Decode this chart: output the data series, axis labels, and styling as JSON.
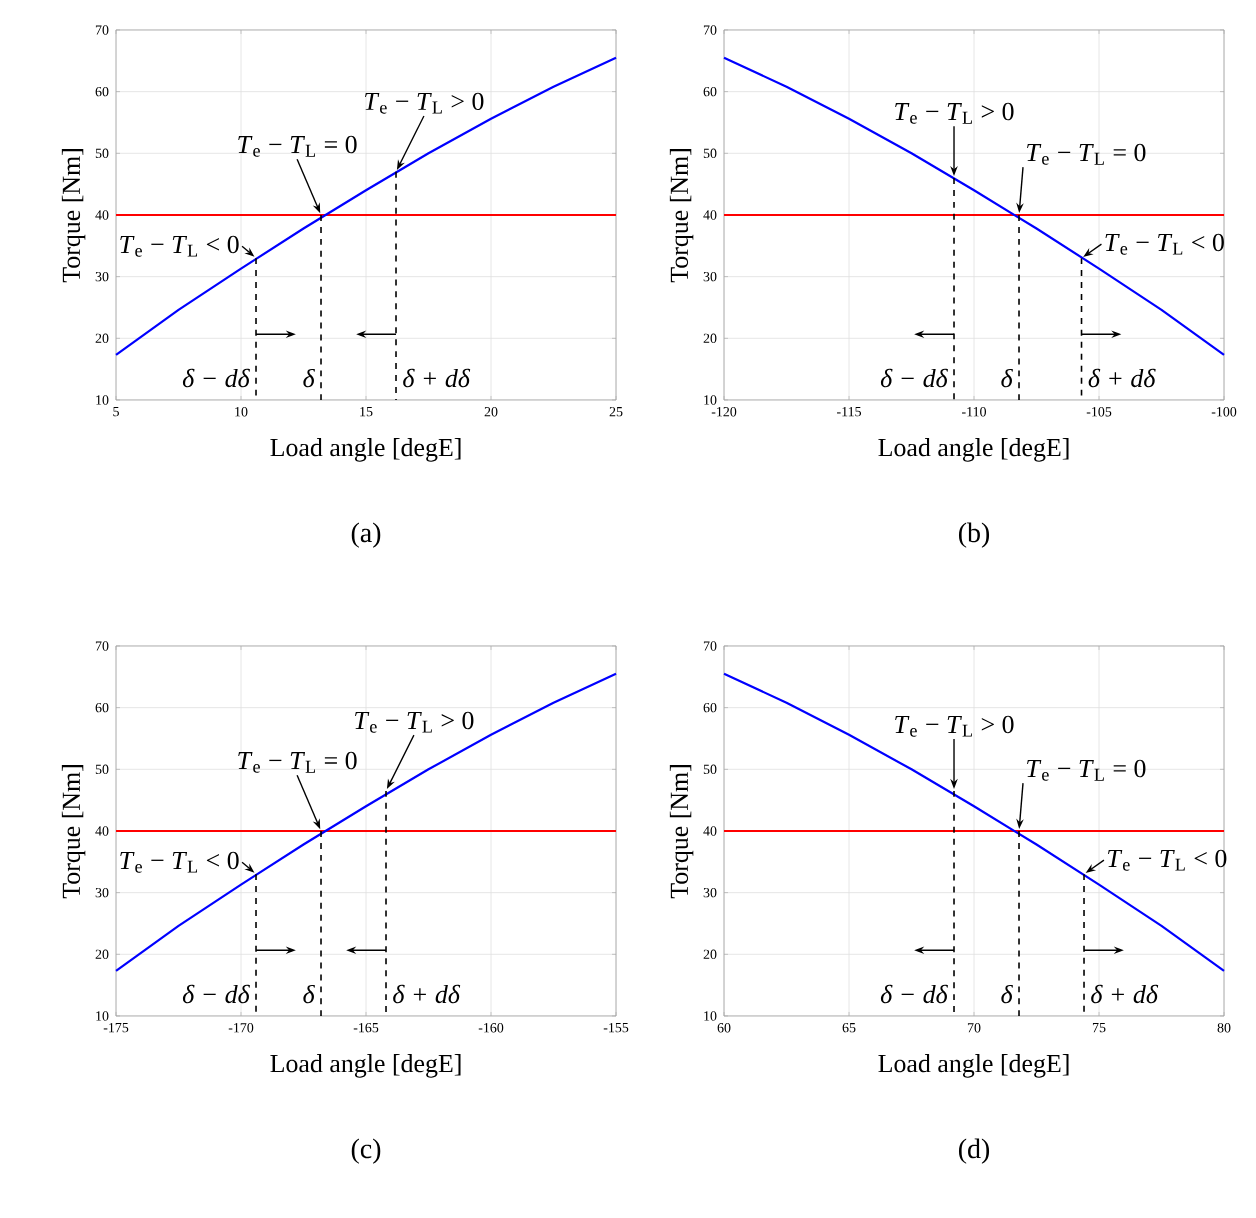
{
  "chart_data": [
    {
      "type": "line",
      "xlabel": "Load angle [degE]",
      "ylabel": "Torque [Nm]",
      "x": [
        5,
        7.5,
        10,
        12.5,
        15,
        17.5,
        20,
        22.5,
        25
      ],
      "series": [
        {
          "color": "#0000ff",
          "values": [
            17.3,
            24.6,
            31.3,
            37.8,
            44,
            50,
            55.6,
            60.8,
            65.5
          ]
        }
      ],
      "xlim": [
        5,
        25
      ],
      "ylim": [
        10,
        70
      ],
      "xticks": [
        5,
        10,
        15,
        20,
        25
      ],
      "yticks": [
        10,
        20,
        30,
        40,
        50,
        60,
        70
      ],
      "grid": true,
      "ref_lines": [
        {
          "axis": "y",
          "value": 40,
          "color": "#ff0000"
        }
      ],
      "annotations": [
        {
          "text": "*T*$_{e}$ − *T*$_{L}$ < 0",
          "x": 10.6,
          "y": 33
        },
        {
          "text": "*T*$_{e}$ − *T*$_{L}$ = 0",
          "x": 13.2,
          "y": 40
        },
        {
          "text": "*T*$_{e}$ − *T*$_{L}$ > 0",
          "x": 16.2,
          "y": 47
        },
        {
          "text": "δ − dδ",
          "x": 10.6,
          "y": 33
        },
        {
          "text": "δ",
          "x": 13.2,
          "y": 40
        },
        {
          "text": "δ + dδ",
          "x": 16.2,
          "y": 47
        },
        "(a)"
      ]
    },
    {
      "type": "line",
      "xlabel": "Load angle [degE]",
      "ylabel": "Torque [Nm]",
      "x": [
        -120,
        -117.5,
        -115,
        -112.5,
        -110,
        -107.5,
        -105,
        -102.5,
        -100
      ],
      "series": [
        {
          "color": "#0000ff",
          "values": [
            65.5,
            60.8,
            55.6,
            50,
            44,
            37.8,
            31.3,
            24.6,
            17.3
          ]
        }
      ],
      "xlim": [
        -120,
        -100
      ],
      "ylim": [
        10,
        70
      ],
      "xticks": [
        -120,
        -115,
        -110,
        -105,
        -100
      ],
      "yticks": [
        10,
        20,
        30,
        40,
        50,
        60,
        70
      ],
      "grid": true,
      "ref_lines": [
        {
          "axis": "y",
          "value": 40,
          "color": "#ff0000"
        }
      ],
      "annotations": [
        {
          "text": "*T*$_{e}$ − *T*$_{L}$ > 0",
          "x": -110.8,
          "y": 46
        },
        {
          "text": "*T*$_{e}$ − *T*$_{L}$ = 0",
          "x": -108.2,
          "y": 40
        },
        {
          "text": "*T*$_{e}$ − *T*$_{L}$ < 0",
          "x": -105.7,
          "y": 33
        },
        {
          "text": "δ − dδ",
          "x": -110.8,
          "y": 46
        },
        {
          "text": "δ",
          "x": -108.2,
          "y": 40
        },
        {
          "text": "δ + dδ",
          "x": -105.7,
          "y": 33
        },
        "(b)"
      ]
    },
    {
      "type": "line",
      "xlabel": "Load angle [degE]",
      "ylabel": "Torque [Nm]",
      "x": [
        -175,
        -172.5,
        -170,
        -167.5,
        -165,
        -162.5,
        -160,
        -157.5,
        -155
      ],
      "series": [
        {
          "color": "#0000ff",
          "values": [
            17.3,
            24.6,
            31.3,
            37.8,
            44,
            50,
            55.6,
            60.8,
            65.5
          ]
        }
      ],
      "xlim": [
        -175,
        -155
      ],
      "ylim": [
        10,
        70
      ],
      "xticks": [
        -175,
        -170,
        -165,
        -160,
        -155
      ],
      "yticks": [
        10,
        20,
        30,
        40,
        50,
        60,
        70
      ],
      "grid": true,
      "ref_lines": [
        {
          "axis": "y",
          "value": 40,
          "color": "#ff0000"
        }
      ],
      "annotations": [
        {
          "text": "*T*$_{e}$ − *T*$_{L}$ < 0",
          "x": -169.4,
          "y": 33
        },
        {
          "text": "*T*$_{e}$ − *T*$_{L}$ = 0",
          "x": -166.8,
          "y": 40
        },
        {
          "text": "*T*$_{e}$ − *T*$_{L}$ > 0",
          "x": -164.2,
          "y": 46.5
        },
        {
          "text": "δ − dδ",
          "x": -169.4,
          "y": 33
        },
        {
          "text": "δ",
          "x": -166.8,
          "y": 40
        },
        {
          "text": "δ + dδ",
          "x": -164.2,
          "y": 46.5
        },
        "(c)"
      ]
    },
    {
      "type": "line",
      "xlabel": "Load angle [degE]",
      "ylabel": "Torque [Nm]",
      "x": [
        60,
        62.5,
        65,
        67.5,
        70,
        72.5,
        75,
        77.5,
        80
      ],
      "series": [
        {
          "color": "#0000ff",
          "values": [
            65.5,
            60.8,
            55.6,
            50,
            44,
            37.8,
            31.3,
            24.6,
            17.3
          ]
        }
      ],
      "xlim": [
        60,
        80
      ],
      "ylim": [
        10,
        70
      ],
      "xticks": [
        60,
        65,
        70,
        75,
        80
      ],
      "yticks": [
        10,
        20,
        30,
        40,
        50,
        60,
        70
      ],
      "grid": true,
      "ref_lines": [
        {
          "axis": "y",
          "value": 40,
          "color": "#ff0000"
        }
      ],
      "annotations": [
        {
          "text": "*T*$_{e}$ − *T*$_{L}$ > 0",
          "x": 69.2,
          "y": 46.5
        },
        {
          "text": "*T*$_{e}$ − *T*$_{L}$ = 0",
          "x": 71.8,
          "y": 40
        },
        {
          "text": "*T*$_{e}$ − *T*$_{L}$ < 0",
          "x": 74.4,
          "y": 33
        },
        {
          "text": "δ − dδ",
          "x": 69.2,
          "y": 46.5
        },
        {
          "text": "δ",
          "x": 71.8,
          "y": 40
        },
        {
          "text": "δ + dδ",
          "x": 74.4,
          "y": 33
        },
        "(d)"
      ]
    }
  ]
}
